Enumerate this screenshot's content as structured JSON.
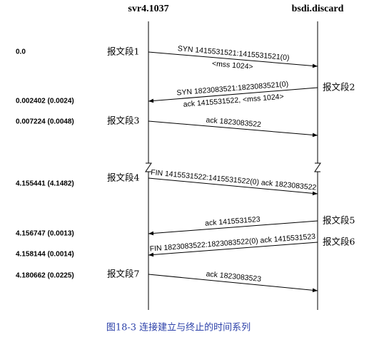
{
  "hosts": {
    "left": "svr4.1037",
    "right": "bsdi.discard"
  },
  "segments": [
    {
      "label": "报文段1",
      "time": "0.0",
      "lines": [
        "SYN 1415531521:1415531521(0)",
        "<mss 1024>"
      ]
    },
    {
      "label": "报文段2",
      "time": "0.002402 (0.0024)",
      "lines": [
        "SYN 1823083521:1823083521(0)",
        "ack 1415531522, <mss 1024>"
      ]
    },
    {
      "label": "报文段3",
      "time": "0.007224 (0.0048)",
      "lines": [
        "ack 1823083522"
      ]
    },
    {
      "label": "报文段4",
      "time": "4.155441 (4.1482)",
      "lines": [
        "FIN 1415531522:1415531522(0) ack 1823083522"
      ]
    },
    {
      "label": "报文段5",
      "time": "4.156747 (0.0013)",
      "lines": [
        "ack 1415531523"
      ]
    },
    {
      "label": "报文段6",
      "time": "4.158144 (0.0014)",
      "lines": [
        "FIN 1823083522:1823083522(0) ack 1415531523"
      ]
    },
    {
      "label": "报文段7",
      "time": "4.180662 (0.0225)",
      "lines": [
        "ack 1823083523"
      ]
    }
  ],
  "caption": "图18-3   连接建立与终止的时间系列"
}
